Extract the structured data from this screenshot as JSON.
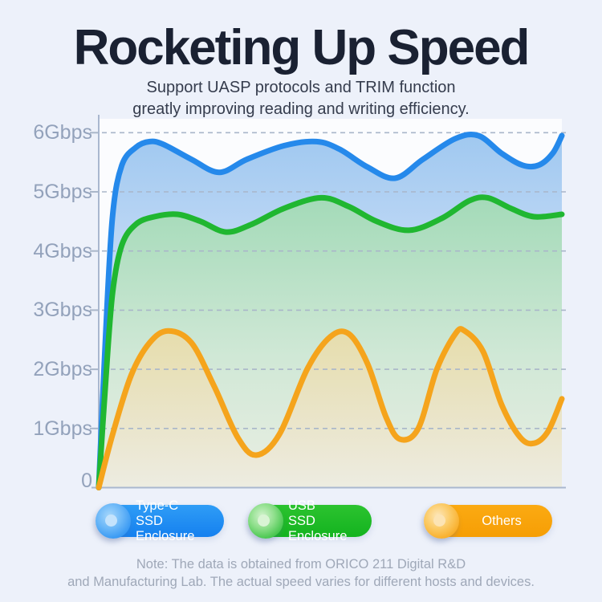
{
  "title": "Rocketing Up Speed",
  "subtitle": {
    "line1": "Support UASP protocols and TRIM function",
    "line2": "greatly improving reading and writing efficiency."
  },
  "axis": {
    "labels": [
      "6Gbps",
      "5Gbps",
      "4Gbps",
      "3Gbps",
      "2Gbps",
      "1Gbps",
      "0"
    ]
  },
  "legend": {
    "items": [
      {
        "line1": "Type-C",
        "line2": "SSD Enclosure",
        "color": "#1f8cf3"
      },
      {
        "line1": "USB",
        "line2": "SSD Enclosure",
        "color": "#1cbc27"
      },
      {
        "line1": "Others",
        "line2": "",
        "color": "#f7a410"
      }
    ]
  },
  "note": {
    "line1": "Note: The data is obtained from ORICO 211 Digital R&D",
    "line2": "and Manufacturing Lab. The actual speed varies for different hosts and devices."
  },
  "colors": {
    "background": "#edf1fa",
    "title_text": "#1a2132",
    "axis_text": "#93a2bb",
    "grid_line": "#a9b6c9",
    "typec_line": "#2589eb",
    "usb_line": "#20b731",
    "others_line": "#f5a41c"
  },
  "chart_data": {
    "type": "area",
    "title": "Rocketing Up Speed",
    "ylabel": "Gbps",
    "ylim": [
      0,
      6
    ],
    "yticks": [
      "0",
      "1Gbps",
      "2Gbps",
      "3Gbps",
      "4Gbps",
      "5Gbps",
      "6Gbps"
    ],
    "grid": "dashed horizontal",
    "legend_position": "bottom",
    "x_unit": "percent-of-timeline",
    "series": [
      {
        "name": "Type-C SSD Enclosure",
        "color": "#2589eb",
        "x_pct": [
          0,
          1.5,
          3,
          5,
          8,
          11,
          14,
          20,
          26,
          32,
          40,
          47,
          52,
          58,
          64,
          70,
          77,
          82,
          87,
          91.5,
          95,
          98,
          100
        ],
        "gbps": [
          0,
          2.6,
          4.6,
          5.45,
          5.75,
          5.85,
          5.8,
          5.55,
          5.33,
          5.55,
          5.78,
          5.85,
          5.72,
          5.42,
          5.23,
          5.55,
          5.9,
          5.95,
          5.65,
          5.45,
          5.45,
          5.65,
          5.95
        ]
      },
      {
        "name": "USB SSD Enclosure",
        "color": "#20b731",
        "x_pct": [
          0,
          1.5,
          3,
          5,
          8,
          12,
          17,
          22,
          27.5,
          33,
          40,
          48,
          54,
          60,
          67,
          74,
          80,
          84,
          89,
          94,
          100
        ],
        "gbps": [
          0,
          1.8,
          3.3,
          4.1,
          4.45,
          4.58,
          4.62,
          4.5,
          4.32,
          4.45,
          4.72,
          4.9,
          4.75,
          4.5,
          4.35,
          4.55,
          4.85,
          4.9,
          4.72,
          4.58,
          4.62
        ]
      },
      {
        "name": "Others",
        "color": "#f5a41c",
        "x_pct": [
          0,
          3,
          7,
          11,
          15,
          20,
          25,
          30,
          34,
          39,
          45,
          50,
          54,
          58,
          62,
          65,
          69,
          73,
          77,
          79,
          83,
          87,
          91,
          94,
          97,
          100
        ],
        "gbps": [
          0,
          0.9,
          1.9,
          2.45,
          2.65,
          2.45,
          1.7,
          0.85,
          0.55,
          0.9,
          2.0,
          2.55,
          2.6,
          2.1,
          1.2,
          0.82,
          1.0,
          2.0,
          2.6,
          2.65,
          2.3,
          1.4,
          0.85,
          0.75,
          0.95,
          1.5
        ]
      }
    ]
  }
}
